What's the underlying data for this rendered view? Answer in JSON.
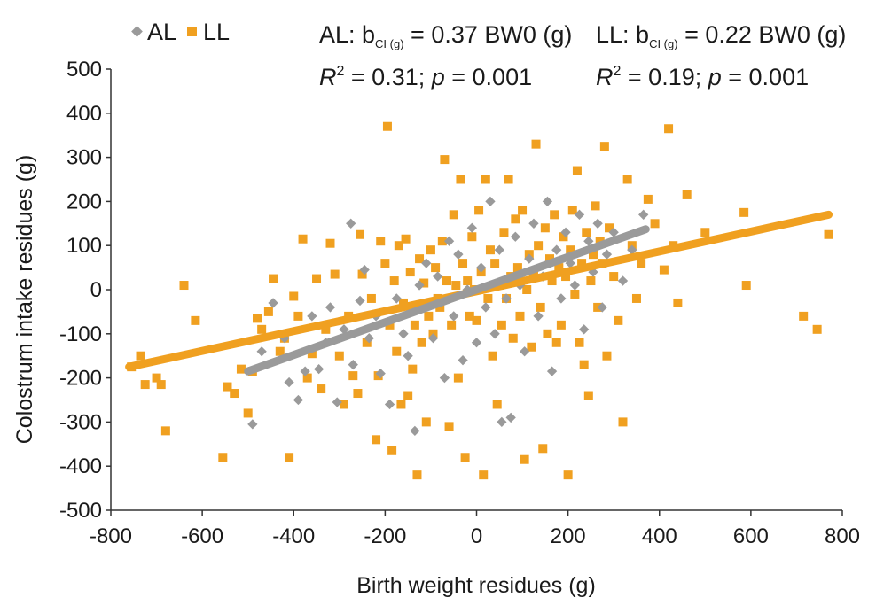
{
  "chart_data": {
    "type": "scatter",
    "xlabel": "Birth weight residues (g)",
    "ylabel": "Colostrum intake residues (g)",
    "xlim": [
      -800,
      800
    ],
    "ylim": [
      -500,
      500
    ],
    "xticks": [
      -800,
      -600,
      -400,
      -200,
      0,
      200,
      400,
      600,
      800
    ],
    "yticks": [
      -500,
      -400,
      -300,
      -200,
      -100,
      0,
      100,
      200,
      300,
      400,
      500
    ],
    "xtick_labels": [
      "-800",
      "-600",
      "-400",
      "-200",
      "0",
      "200",
      "400",
      "600",
      "800"
    ],
    "ytick_labels": [
      "-500",
      "-400",
      "-300",
      "-200",
      "-100",
      "0",
      "100",
      "200",
      "300",
      "400",
      "500"
    ],
    "grid": false,
    "legend_position": "top-left",
    "series": [
      {
        "name": "AL",
        "marker": "diamond",
        "color": "#9a9a9a",
        "trend": {
          "x": [
            -500,
            370
          ],
          "y": [
            -185,
            137
          ]
        },
        "points": [
          [
            -490,
            -305
          ],
          [
            -470,
            -140
          ],
          [
            -445,
            -30
          ],
          [
            -420,
            -110
          ],
          [
            -410,
            -210
          ],
          [
            -390,
            -250
          ],
          [
            -375,
            -185
          ],
          [
            -360,
            -60
          ],
          [
            -345,
            -180
          ],
          [
            -330,
            -120
          ],
          [
            -320,
            -40
          ],
          [
            -305,
            -255
          ],
          [
            -290,
            -90
          ],
          [
            -275,
            150
          ],
          [
            -270,
            -170
          ],
          [
            -255,
            -25
          ],
          [
            -245,
            45
          ],
          [
            -235,
            -110
          ],
          [
            -220,
            -60
          ],
          [
            -210,
            -190
          ],
          [
            -190,
            -260
          ],
          [
            -175,
            -20
          ],
          [
            -160,
            -100
          ],
          [
            -150,
            -150
          ],
          [
            -135,
            -320
          ],
          [
            -125,
            10
          ],
          [
            -110,
            60
          ],
          [
            -95,
            -110
          ],
          [
            -85,
            30
          ],
          [
            -70,
            -200
          ],
          [
            -60,
            110
          ],
          [
            -50,
            -60
          ],
          [
            -40,
            80
          ],
          [
            -30,
            -160
          ],
          [
            -20,
            0
          ],
          [
            -10,
            140
          ],
          [
            0,
            -120
          ],
          [
            10,
            50
          ],
          [
            20,
            -40
          ],
          [
            30,
            200
          ],
          [
            40,
            -100
          ],
          [
            50,
            90
          ],
          [
            55,
            -300
          ],
          [
            65,
            -20
          ],
          [
            75,
            -290
          ],
          [
            85,
            120
          ],
          [
            95,
            10
          ],
          [
            105,
            -140
          ],
          [
            115,
            70
          ],
          [
            125,
            150
          ],
          [
            135,
            -60
          ],
          [
            145,
            30
          ],
          [
            155,
            200
          ],
          [
            165,
            -185
          ],
          [
            175,
            90
          ],
          [
            185,
            -20
          ],
          [
            195,
            130
          ],
          [
            205,
            60
          ],
          [
            215,
            10
          ],
          [
            225,
            170
          ],
          [
            235,
            -90
          ],
          [
            245,
            110
          ],
          [
            255,
            40
          ],
          [
            265,
            150
          ],
          [
            275,
            -40
          ],
          [
            285,
            80
          ],
          [
            300,
            130
          ],
          [
            320,
            20
          ],
          [
            340,
            90
          ],
          [
            365,
            170
          ]
        ]
      },
      {
        "name": "LL",
        "marker": "square",
        "color": "#f0a020",
        "trend": {
          "x": [
            -760,
            770
          ],
          "y": [
            -175,
            170
          ]
        },
        "points": [
          [
            -755,
            -175
          ],
          [
            -735,
            -150
          ],
          [
            -725,
            -215
          ],
          [
            -700,
            -200
          ],
          [
            -690,
            -215
          ],
          [
            -680,
            -320
          ],
          [
            -640,
            10
          ],
          [
            -615,
            -70
          ],
          [
            -555,
            -380
          ],
          [
            -545,
            -220
          ],
          [
            -530,
            -235
          ],
          [
            -515,
            -180
          ],
          [
            -500,
            -280
          ],
          [
            -490,
            -185
          ],
          [
            -480,
            -65
          ],
          [
            -470,
            -90
          ],
          [
            -455,
            -50
          ],
          [
            -445,
            25
          ],
          [
            -430,
            -140
          ],
          [
            -420,
            -110
          ],
          [
            -410,
            -380
          ],
          [
            -400,
            -15
          ],
          [
            -390,
            -60
          ],
          [
            -380,
            115
          ],
          [
            -370,
            -200
          ],
          [
            -360,
            -145
          ],
          [
            -350,
            25
          ],
          [
            -340,
            -225
          ],
          [
            -330,
            -90
          ],
          [
            -320,
            105
          ],
          [
            -310,
            35
          ],
          [
            -300,
            -150
          ],
          [
            -290,
            -260
          ],
          [
            -280,
            -60
          ],
          [
            -270,
            -195
          ],
          [
            -260,
            -235
          ],
          [
            -255,
            125
          ],
          [
            -250,
            35
          ],
          [
            -240,
            -120
          ],
          [
            -230,
            -20
          ],
          [
            -220,
            -340
          ],
          [
            -215,
            -195
          ],
          [
            -210,
            110
          ],
          [
            -200,
            60
          ],
          [
            -195,
            370
          ],
          [
            -190,
            -80
          ],
          [
            -185,
            -365
          ],
          [
            -180,
            20
          ],
          [
            -175,
            -140
          ],
          [
            -170,
            100
          ],
          [
            -165,
            -260
          ],
          [
            -160,
            -30
          ],
          [
            -155,
            115
          ],
          [
            -150,
            -240
          ],
          [
            -145,
            40
          ],
          [
            -140,
            -180
          ],
          [
            -135,
            -80
          ],
          [
            -130,
            -420
          ],
          [
            -125,
            70
          ],
          [
            -120,
            -120
          ],
          [
            -115,
            15
          ],
          [
            -110,
            -300
          ],
          [
            -105,
            -60
          ],
          [
            -100,
            90
          ],
          [
            -95,
            -100
          ],
          [
            -90,
            50
          ],
          [
            -85,
            -20
          ],
          [
            -80,
            -40
          ],
          [
            -75,
            110
          ],
          [
            -70,
            295
          ],
          [
            -65,
            20
          ],
          [
            -60,
            -310
          ],
          [
            -55,
            -80
          ],
          [
            -50,
            170
          ],
          [
            -45,
            10
          ],
          [
            -40,
            -200
          ],
          [
            -35,
            250
          ],
          [
            -30,
            60
          ],
          [
            -25,
            -380
          ],
          [
            -20,
            20
          ],
          [
            -15,
            -60
          ],
          [
            -10,
            120
          ],
          [
            -5,
            0
          ],
          [
            0,
            -70
          ],
          [
            5,
            180
          ],
          [
            10,
            40
          ],
          [
            15,
            -420
          ],
          [
            20,
            250
          ],
          [
            25,
            -20
          ],
          [
            30,
            90
          ],
          [
            35,
            -150
          ],
          [
            40,
            60
          ],
          [
            45,
            -260
          ],
          [
            50,
            10
          ],
          [
            55,
            -80
          ],
          [
            60,
            130
          ],
          [
            65,
            -20
          ],
          [
            70,
            250
          ],
          [
            75,
            30
          ],
          [
            80,
            -110
          ],
          [
            85,
            160
          ],
          [
            90,
            50
          ],
          [
            95,
            -60
          ],
          [
            100,
            180
          ],
          [
            105,
            -385
          ],
          [
            110,
            0
          ],
          [
            115,
            80
          ],
          [
            120,
            -130
          ],
          [
            125,
            40
          ],
          [
            130,
            330
          ],
          [
            135,
            100
          ],
          [
            140,
            -40
          ],
          [
            145,
            -360
          ],
          [
            150,
            140
          ],
          [
            155,
            -100
          ],
          [
            160,
            70
          ],
          [
            165,
            20
          ],
          [
            170,
            170
          ],
          [
            175,
            -120
          ],
          [
            180,
            50
          ],
          [
            185,
            -80
          ],
          [
            190,
            120
          ],
          [
            195,
            30
          ],
          [
            200,
            -420
          ],
          [
            205,
            90
          ],
          [
            210,
            180
          ],
          [
            215,
            -10
          ],
          [
            220,
            270
          ],
          [
            225,
            -120
          ],
          [
            230,
            60
          ],
          [
            235,
            -170
          ],
          [
            240,
            130
          ],
          [
            245,
            -240
          ],
          [
            250,
            20
          ],
          [
            255,
            80
          ],
          [
            260,
            190
          ],
          [
            265,
            -40
          ],
          [
            270,
            110
          ],
          [
            275,
            60
          ],
          [
            280,
            325
          ],
          [
            285,
            -150
          ],
          [
            290,
            140
          ],
          [
            300,
            30
          ],
          [
            310,
            -70
          ],
          [
            320,
            -300
          ],
          [
            330,
            250
          ],
          [
            340,
            100
          ],
          [
            350,
            -20
          ],
          [
            360,
            60
          ],
          [
            375,
            205
          ],
          [
            390,
            150
          ],
          [
            410,
            45
          ],
          [
            420,
            365
          ],
          [
            430,
            100
          ],
          [
            440,
            -30
          ],
          [
            460,
            215
          ],
          [
            500,
            130
          ],
          [
            585,
            175
          ],
          [
            590,
            10
          ],
          [
            715,
            -60
          ],
          [
            745,
            -90
          ],
          [
            770,
            125
          ]
        ]
      }
    ],
    "annotations": {
      "al_line1": {
        "prefix": "AL: b",
        "sub": "CI (g)",
        "suffix": " = 0.37 BW0 (g)"
      },
      "al_line2": {
        "r": "R",
        "sup": "2",
        "mid": " = 0.31; ",
        "p": "p",
        "end": " = 0.001"
      },
      "ll_line1": {
        "prefix": "LL: b",
        "sub": "CI (g)",
        "suffix": " = 0.22 BW0 (g)"
      },
      "ll_line2": {
        "r": "R",
        "sup": "2",
        "mid": " = 0.19; ",
        "p": "p",
        "end": " = 0.001"
      }
    }
  }
}
